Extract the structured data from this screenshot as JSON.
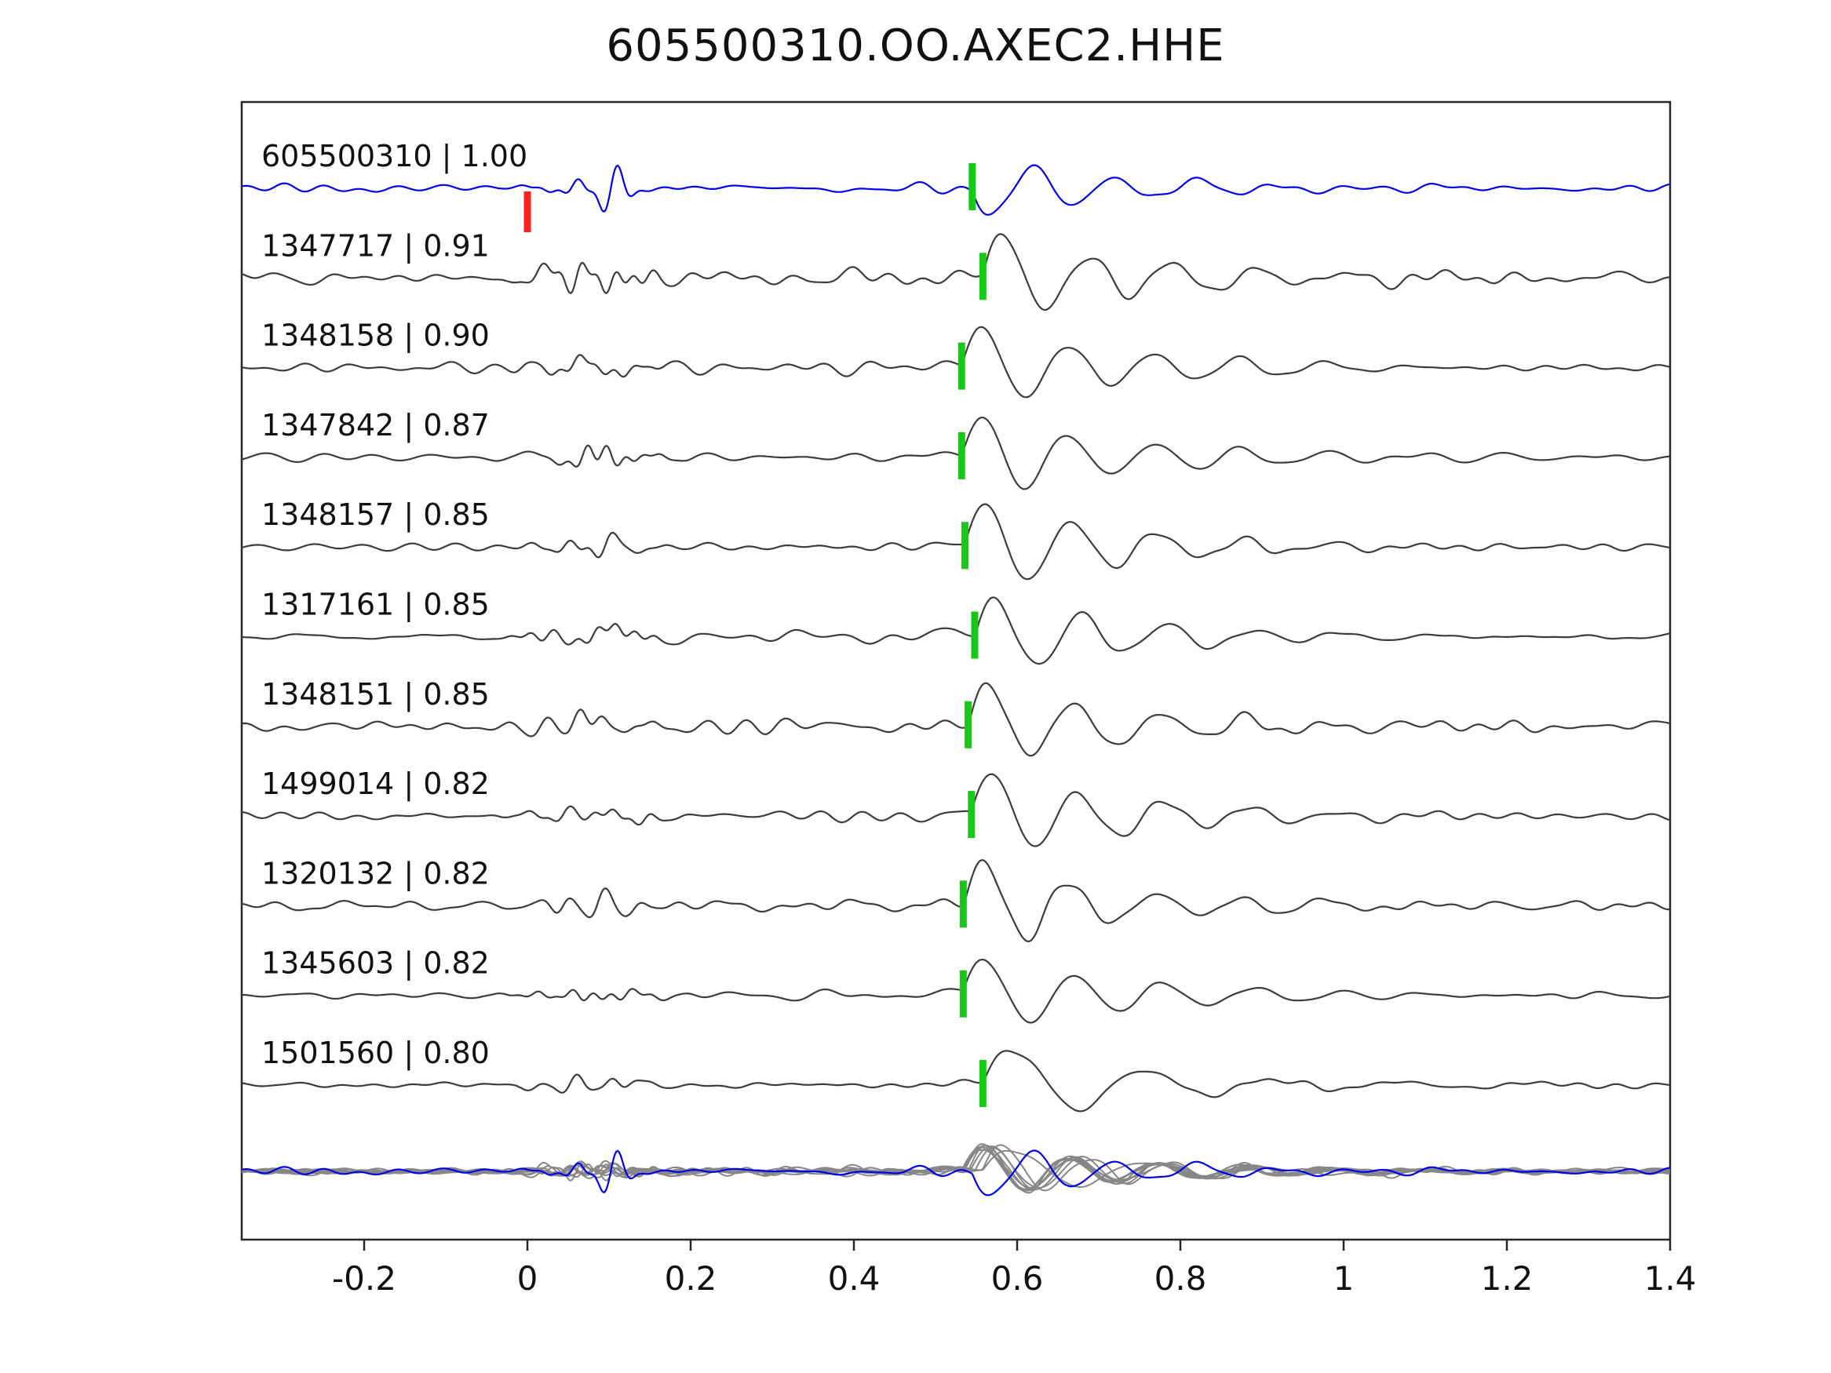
{
  "title": "605500310.OO.AXEC2.HHE",
  "chart_data": {
    "type": "line",
    "title": "605500310.OO.AXEC2.HHE",
    "subtitle": "",
    "xlabel": "",
    "ylabel": "",
    "xlim": [
      -0.35,
      1.4
    ],
    "xticks": [
      -0.2,
      0,
      0.2,
      0.4,
      0.6,
      0.8,
      1,
      1.2,
      1.4
    ],
    "xtick_labels": [
      "-0.2",
      "0",
      "0.2",
      "0.4",
      "0.6",
      "0.8",
      "1",
      "1.2",
      "1.4"
    ],
    "grid": false,
    "legend": false,
    "colors": {
      "reference_trace": "#0000ee",
      "match_trace": "#3c3c3c",
      "overlay_trace": "#878787",
      "pick_marker": "#17c917",
      "reference_marker": "#ff2020",
      "axis": "#262626",
      "text": "#111111"
    },
    "traces": [
      {
        "label": "605500310 | 1.00",
        "id": "605500310",
        "similarity": 1.0,
        "pick_time": 0.545,
        "is_reference": true,
        "ref_marker_time": 0.0,
        "noise_amp": 6,
        "arrival_amp": -38,
        "period": 0.1
      },
      {
        "label": "1347717 | 0.91",
        "id": "1347717",
        "similarity": 0.91,
        "pick_time": 0.558,
        "noise_amp": 11,
        "arrival_amp": 58,
        "period": 0.105
      },
      {
        "label": "1348158 | 0.90",
        "id": "1348158",
        "similarity": 0.9,
        "pick_time": 0.532,
        "noise_amp": 7,
        "arrival_amp": 60,
        "period": 0.105
      },
      {
        "label": "1347842 | 0.87",
        "id": "1347842",
        "similarity": 0.87,
        "pick_time": 0.532,
        "noise_amp": 6,
        "arrival_amp": 58,
        "period": 0.105
      },
      {
        "label": "1348157 | 0.85",
        "id": "1348157",
        "similarity": 0.85,
        "pick_time": 0.536,
        "noise_amp": 7,
        "arrival_amp": 60,
        "period": 0.105
      },
      {
        "label": "1317161 | 0.85",
        "id": "1317161",
        "similarity": 0.85,
        "pick_time": 0.548,
        "noise_amp": 7,
        "arrival_amp": 58,
        "period": 0.105
      },
      {
        "label": "1348151 | 0.85",
        "id": "1348151",
        "similarity": 0.85,
        "pick_time": 0.54,
        "noise_amp": 9,
        "arrival_amp": 56,
        "period": 0.105
      },
      {
        "label": "1499014 | 0.82",
        "id": "1499014",
        "similarity": 0.82,
        "pick_time": 0.544,
        "noise_amp": 6,
        "arrival_amp": 58,
        "period": 0.105
      },
      {
        "label": "1320132 | 0.82",
        "id": "1320132",
        "similarity": 0.82,
        "pick_time": 0.534,
        "noise_amp": 7,
        "arrival_amp": 58,
        "period": 0.105
      },
      {
        "label": "1345603 | 0.82",
        "id": "1345603",
        "similarity": 0.82,
        "pick_time": 0.534,
        "noise_amp": 6,
        "arrival_amp": 56,
        "period": 0.11
      },
      {
        "label": "1501560 | 0.80",
        "id": "1501560",
        "similarity": 0.8,
        "pick_time": 0.558,
        "noise_amp": 5,
        "arrival_amp": 55,
        "period": 0.16
      }
    ],
    "overlay_row": {
      "description": "All matched traces superimposed with the reference trace",
      "color": "#878787",
      "reference_color": "#0000ee"
    }
  }
}
